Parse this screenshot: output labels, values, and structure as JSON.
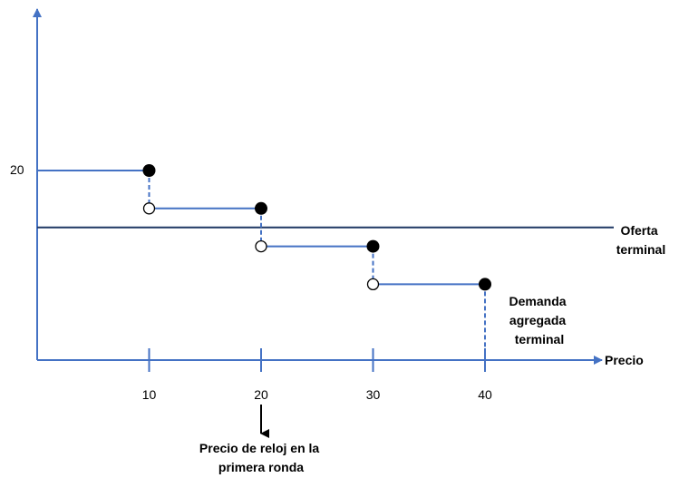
{
  "chart_data": {
    "type": "line",
    "xlabel": "Precio",
    "ylabel": "",
    "x_ticks": [
      "10",
      "20",
      "30",
      "40"
    ],
    "y_ticks": [
      "20"
    ],
    "series": [
      {
        "name": "Demanda agregada terminal",
        "kind": "step",
        "points": [
          [
            0,
            20
          ],
          [
            10,
            20
          ],
          [
            10,
            16
          ],
          [
            20,
            16
          ],
          [
            20,
            12
          ],
          [
            30,
            12
          ],
          [
            30,
            8
          ],
          [
            40,
            8
          ],
          [
            40,
            0
          ]
        ],
        "filled_points": [
          [
            10,
            20
          ],
          [
            20,
            16
          ],
          [
            30,
            12
          ],
          [
            40,
            8
          ]
        ],
        "open_points": [
          [
            10,
            16
          ],
          [
            20,
            12
          ],
          [
            30,
            8
          ]
        ]
      },
      {
        "name": "Oferta terminal",
        "kind": "horizontal",
        "y": 14
      }
    ],
    "labels": {
      "supply_line1": "Oferta",
      "supply_line2": "terminal",
      "demand_line1": "Demanda",
      "demand_line2": "agregada",
      "demand_line3": "terminal",
      "annotation_line1": "Precio de reloj en la",
      "annotation_line2": "primera ronda"
    },
    "annotation_x": 20,
    "xlim": [
      0,
      50
    ],
    "ylim": [
      0,
      30
    ],
    "colors": {
      "axis": "#4472C4",
      "demand": "#4472C4",
      "supply": "#1F3864",
      "points": "#000000"
    }
  }
}
